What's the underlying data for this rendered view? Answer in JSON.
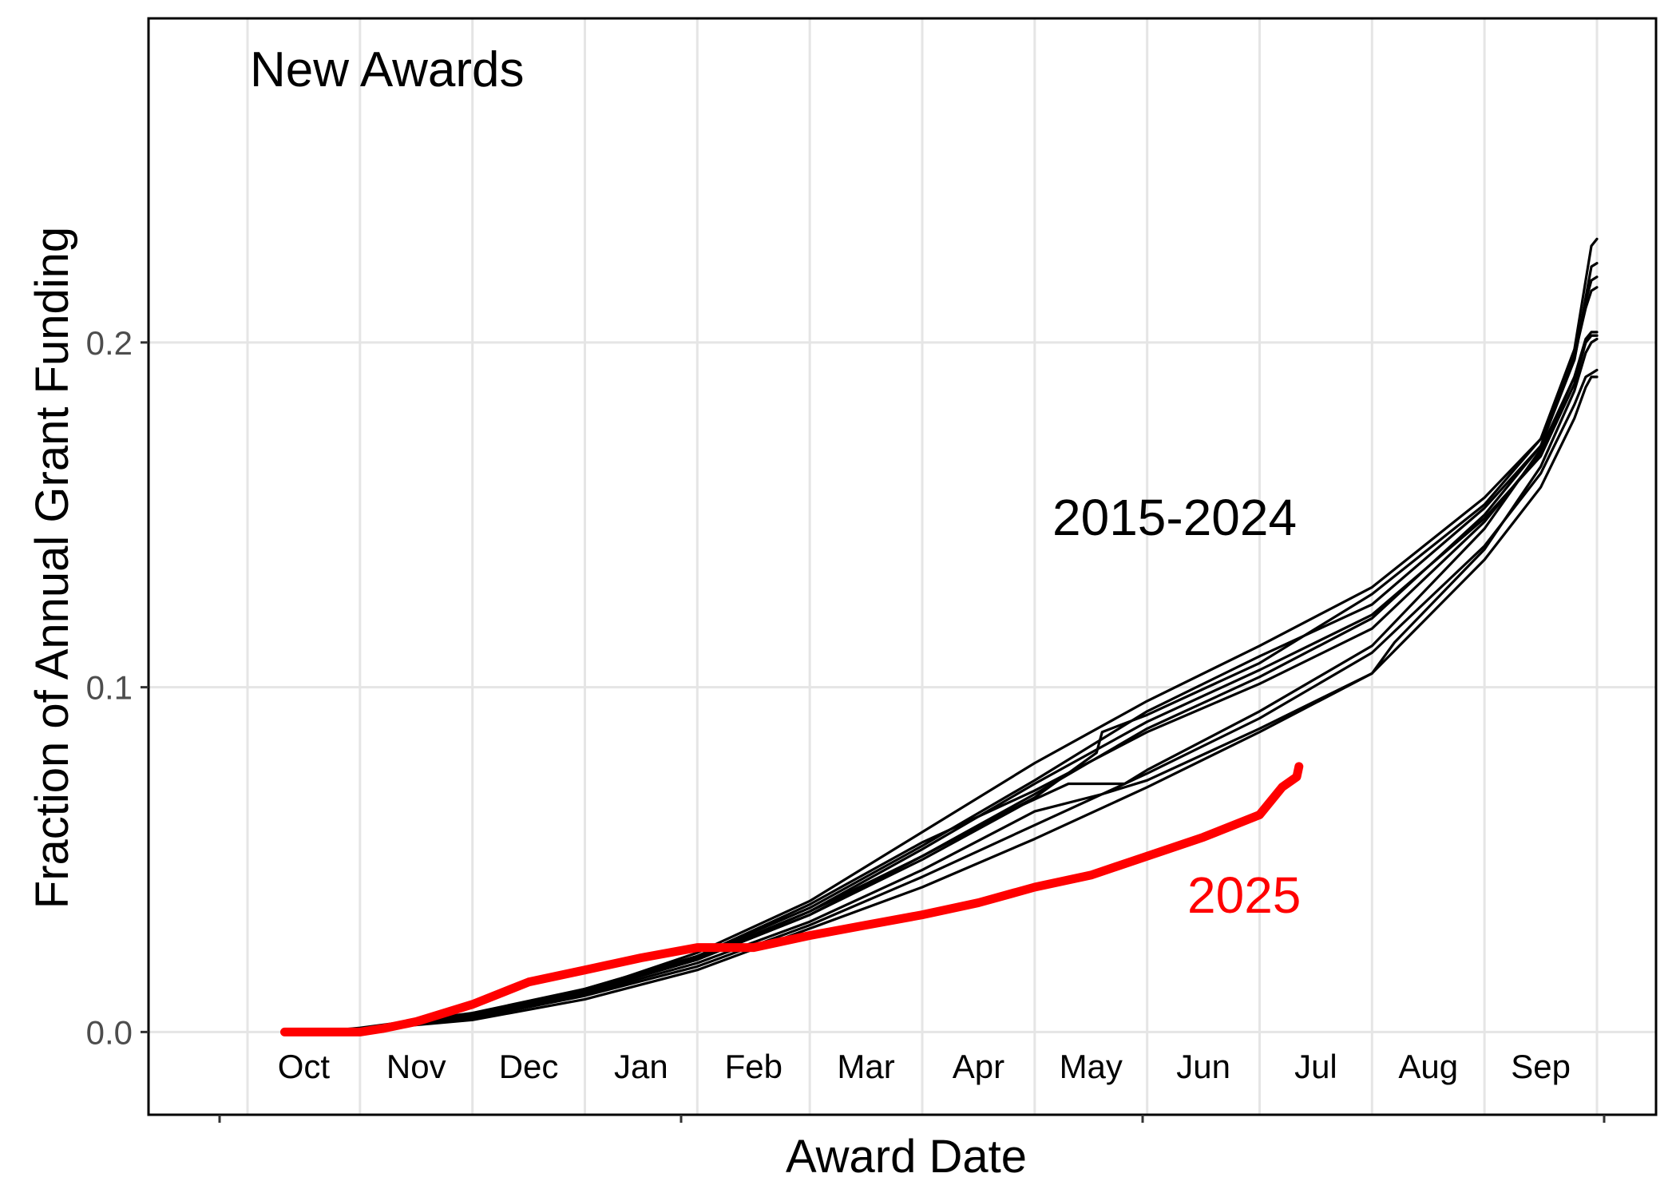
{
  "chart_data": {
    "type": "line",
    "title": "New Awards",
    "xlabel": "Award Date",
    "ylabel": "Fraction of Annual Grant Funding",
    "ylim": [
      -0.024,
      0.294
    ],
    "y_ticks": [
      {
        "value": 0.0,
        "label": "0.0"
      },
      {
        "value": 0.1,
        "label": "0.1"
      },
      {
        "value": 0.2,
        "label": "0.2"
      }
    ],
    "x_months": [
      "Oct",
      "Nov",
      "Dec",
      "Jan",
      "Feb",
      "Mar",
      "Apr",
      "May",
      "Jun",
      "Jul",
      "Aug",
      "Sep"
    ],
    "x_unit": "month of fiscal year (0 = start of Oct, 12 = end of Sep)",
    "grid": true,
    "legend": "none",
    "annotations": [
      {
        "text": "2015-2024",
        "color": "#000000"
      },
      {
        "text": "2025",
        "color": "#ff0000"
      }
    ],
    "colors": {
      "historical": "#000000",
      "current": "#ff0000",
      "grid": "#e5e5e5"
    },
    "series": [
      {
        "group": "2015-2024",
        "x": [
          0.6,
          1,
          2,
          3,
          4,
          5,
          6,
          7,
          7.55,
          7.6,
          8,
          9,
          10,
          11,
          11.5,
          11.8,
          11.9,
          11.95,
          12.0
        ],
        "y": [
          0,
          0.001,
          0.005,
          0.012,
          0.021,
          0.035,
          0.051,
          0.068,
          0.081,
          0.087,
          0.092,
          0.107,
          0.127,
          0.153,
          0.172,
          0.198,
          0.218,
          0.228,
          0.23
        ]
      },
      {
        "group": "2015-2024",
        "x": [
          0.6,
          1,
          2,
          3,
          4,
          5,
          6,
          7,
          8,
          9,
          10,
          11,
          11.5,
          11.8,
          11.9,
          11.95,
          12.0
        ],
        "y": [
          0,
          0.0012,
          0.0055,
          0.0125,
          0.022,
          0.036,
          0.054,
          0.073,
          0.093,
          0.109,
          0.124,
          0.152,
          0.17,
          0.195,
          0.213,
          0.222,
          0.223
        ]
      },
      {
        "group": "2015-2024",
        "x": [
          0.6,
          1,
          2,
          3,
          4,
          5,
          6,
          7,
          8,
          9,
          10,
          11,
          11.5,
          11.8,
          11.9,
          11.95,
          12.0
        ],
        "y": [
          0,
          0.001,
          0.0048,
          0.012,
          0.023,
          0.038,
          0.058,
          0.078,
          0.096,
          0.112,
          0.129,
          0.155,
          0.172,
          0.195,
          0.212,
          0.218,
          0.219
        ]
      },
      {
        "group": "2015-2024",
        "x": [
          0.6,
          1,
          2,
          3,
          4,
          5,
          6,
          7,
          8,
          9,
          10,
          11,
          11.5,
          11.8,
          11.9,
          11.95,
          12.0
        ],
        "y": [
          0,
          0.0009,
          0.0045,
          0.0115,
          0.021,
          0.034,
          0.051,
          0.069,
          0.088,
          0.103,
          0.12,
          0.15,
          0.17,
          0.196,
          0.21,
          0.215,
          0.216
        ]
      },
      {
        "group": "2015-2024",
        "x": [
          0.6,
          1,
          2,
          3,
          4,
          5,
          6,
          7,
          8,
          9,
          10,
          11,
          11.5,
          11.8,
          11.9,
          11.95,
          12.0
        ],
        "y": [
          0,
          0.001,
          0.005,
          0.0125,
          0.022,
          0.037,
          0.055,
          0.07,
          0.087,
          0.101,
          0.117,
          0.148,
          0.168,
          0.19,
          0.201,
          0.203,
          0.203
        ]
      },
      {
        "group": "2015-2024",
        "x": [
          0.6,
          1,
          2,
          3,
          4,
          5,
          6,
          7,
          8,
          9,
          10,
          11,
          11.5,
          11.8,
          11.9,
          11.95,
          12.0
        ],
        "y": [
          0,
          0.001,
          0.0048,
          0.012,
          0.0215,
          0.035,
          0.053,
          0.072,
          0.09,
          0.105,
          0.121,
          0.149,
          0.167,
          0.188,
          0.2,
          0.202,
          0.202
        ]
      },
      {
        "group": "2015-2024",
        "x": [
          0.6,
          1,
          2,
          3,
          4,
          5,
          6,
          7,
          7.6,
          8,
          9,
          10,
          10.2,
          11,
          11.5,
          11.8,
          11.9,
          11.95,
          12.0
        ],
        "y": [
          0,
          0.0008,
          0.0042,
          0.011,
          0.02,
          0.032,
          0.047,
          0.064,
          0.069,
          0.073,
          0.088,
          0.104,
          0.113,
          0.14,
          0.164,
          0.186,
          0.197,
          0.2,
          0.201
        ]
      },
      {
        "group": "2015-2024",
        "x": [
          0.6,
          1,
          2,
          3,
          4,
          5,
          6,
          6.9,
          7.3,
          7.8,
          8,
          9,
          10,
          11,
          11.5,
          11.8,
          11.9,
          11.95,
          12.0
        ],
        "y": [
          0,
          0.001,
          0.0045,
          0.0115,
          0.021,
          0.034,
          0.05,
          0.066,
          0.072,
          0.072,
          0.076,
          0.093,
          0.112,
          0.146,
          0.169,
          0.19,
          0.2,
          0.202,
          0.202
        ]
      },
      {
        "group": "2015-2024",
        "x": [
          0.6,
          1,
          2,
          3,
          4,
          5,
          6,
          7,
          8,
          9,
          10,
          11,
          11.5,
          11.8,
          11.9,
          11.95,
          12.0
        ],
        "y": [
          0,
          0.0007,
          0.004,
          0.0105,
          0.019,
          0.031,
          0.045,
          0.06,
          0.075,
          0.091,
          0.11,
          0.141,
          0.162,
          0.182,
          0.19,
          0.191,
          0.192
        ]
      },
      {
        "group": "2015-2024",
        "x": [
          0.6,
          1,
          2,
          3,
          4,
          5,
          6,
          7,
          8,
          9,
          10,
          11,
          11.5,
          11.8,
          11.9,
          11.95,
          12.0
        ],
        "y": [
          0,
          0.0006,
          0.0035,
          0.0095,
          0.018,
          0.03,
          0.042,
          0.056,
          0.071,
          0.087,
          0.104,
          0.137,
          0.158,
          0.178,
          0.187,
          0.19,
          0.19
        ]
      },
      {
        "group": "2025",
        "x": [
          0.33,
          1.0,
          1.2,
          1.5,
          2.0,
          2.5,
          3.0,
          3.5,
          4.0,
          4.5,
          5.0,
          5.5,
          6.0,
          6.5,
          7.0,
          7.5,
          8.0,
          8.5,
          9.0,
          9.2,
          9.33,
          9.35
        ],
        "y": [
          0,
          0,
          0.001,
          0.003,
          0.008,
          0.0145,
          0.018,
          0.0215,
          0.0245,
          0.0245,
          0.028,
          0.031,
          0.034,
          0.0375,
          0.042,
          0.0455,
          0.051,
          0.0565,
          0.063,
          0.071,
          0.074,
          0.077
        ]
      }
    ]
  }
}
